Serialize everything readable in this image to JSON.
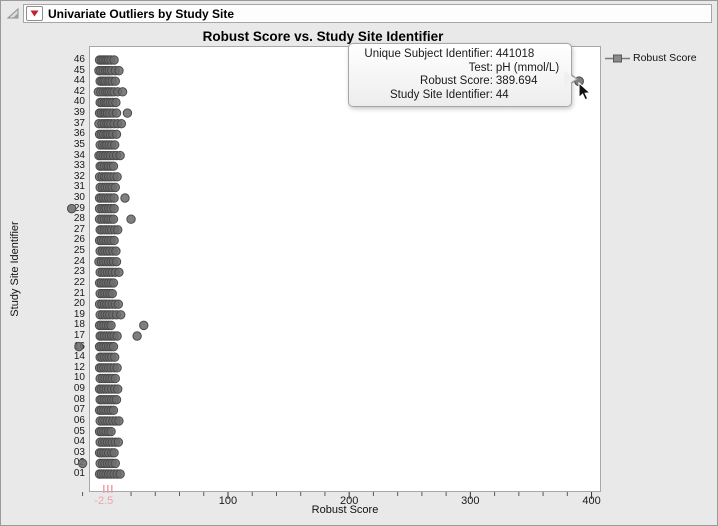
{
  "header": {
    "title": "Univariate Outliers by Study Site"
  },
  "legend": {
    "label": "Robust Score"
  },
  "tooltip": {
    "rows": [
      {
        "label": "Unique Subject Identifier:",
        "value": "441018"
      },
      {
        "label": "Test:",
        "value": "pH (mmol/L)"
      },
      {
        "label": "Robust Score:",
        "value": "389.694"
      },
      {
        "label": "Study Site Identifier:",
        "value": "44"
      }
    ]
  },
  "colors": {
    "window_bg": "#e9e9e9",
    "panel_border": "#9a9a9a",
    "header_bg": "#fdfdfd",
    "header_border": "#a6a6a6",
    "plot_bg": "#ffffff",
    "plot_border": "#a8a8a8",
    "marker_fill": "#6d6d6d",
    "marker_edge": "#4c4c4c",
    "tick": "#5a5a5a",
    "tick_label": "#1a1a1a",
    "axis_highlight_pink": "#f0a2ab",
    "red_triangle": "#c2202c",
    "legend_line": "#7a7a7a",
    "legend_marker_fill": "#8a8a8a",
    "legend_marker_edge": "#585858"
  },
  "chart_data": {
    "type": "scatter",
    "title": "Robust Score vs. Study Site Identifier",
    "xlabel": "Robust Score",
    "ylabel": "Study Site Identifier",
    "xlim": [
      -14.7,
      407.8
    ],
    "x_major_ticks": [
      100,
      200,
      300,
      400
    ],
    "x_major_tick_labels": [
      "100",
      "200",
      "300",
      "400"
    ],
    "x_minor_tick_step": 20,
    "special_x_tick": {
      "label": "-2.5",
      "value": -2.5,
      "extra_tick_values": [
        -2.5,
        0.8,
        4.1
      ]
    },
    "grid": false,
    "legend_position": "top-right",
    "categories_top_to_bottom": [
      "46",
      "45",
      "44",
      "42",
      "40",
      "39",
      "37",
      "36",
      "35",
      "34",
      "33",
      "32",
      "31",
      "30",
      "29",
      "28",
      "27",
      "26",
      "25",
      "24",
      "23",
      "22",
      "21",
      "20",
      "19",
      "18",
      "17",
      "16",
      "14",
      "12",
      "10",
      "09",
      "08",
      "07",
      "06",
      "05",
      "04",
      "03",
      "02",
      "01"
    ],
    "series": [
      {
        "name": "Robust Score",
        "points": [
          {
            "site": "46",
            "scores": [
              -6,
              -4.5,
              -3,
              -1.5,
              0,
              1.5,
              3.5,
              6
            ]
          },
          {
            "site": "45",
            "scores": [
              -6.5,
              -5,
              -3,
              -1,
              0.5,
              2,
              4,
              7,
              10
            ]
          },
          {
            "site": "44",
            "scores": [
              -5.5,
              -4,
              -2.5,
              -1,
              1,
              2.5,
              4.5,
              7
            ]
          },
          {
            "site": "42",
            "scores": [
              -7,
              -5,
              -3,
              -1,
              0.5,
              2,
              4,
              6,
              9,
              13
            ]
          },
          {
            "site": "40",
            "scores": [
              -5.5,
              -4,
              -2,
              -0.5,
              1,
              3,
              5,
              7.5
            ]
          },
          {
            "site": "39",
            "scores": [
              -6,
              -4.5,
              -2.5,
              -1,
              0.5,
              2.5,
              5,
              8,
              17
            ]
          },
          {
            "site": "37",
            "scores": [
              -6.5,
              -4,
              -2,
              0,
              1.5,
              3.5,
              6,
              9,
              12
            ]
          },
          {
            "site": "36",
            "scores": [
              -6,
              -4.5,
              -2.5,
              -0.5,
              1,
              3,
              5,
              8
            ]
          },
          {
            "site": "35",
            "scores": [
              -5.5,
              -3.5,
              -1.5,
              0,
              2,
              4,
              6.5
            ]
          },
          {
            "site": "34",
            "scores": [
              -6.5,
              -5,
              -3,
              -1,
              1,
              3,
              5.5,
              8,
              11
            ]
          },
          {
            "site": "33",
            "scores": [
              -5.5,
              -4,
              -2,
              0,
              1.5,
              3.5,
              5.5
            ]
          },
          {
            "site": "32",
            "scores": [
              -6,
              -4,
              -2,
              -0.5,
              1.5,
              3.5,
              6,
              8.5
            ]
          },
          {
            "site": "31",
            "scores": [
              -5.5,
              -3.5,
              -1.5,
              0.5,
              2.5,
              4.5,
              7
            ]
          },
          {
            "site": "30",
            "scores": [
              -6,
              -4.5,
              -2.5,
              -0.5,
              1.5,
              3.5,
              6,
              15
            ]
          },
          {
            "site": "29",
            "scores": [
              -29,
              -6,
              -4,
              -2,
              -0.5,
              1.5,
              3.5,
              6
            ]
          },
          {
            "site": "28",
            "scores": [
              -6,
              -4,
              -2,
              0,
              1.5,
              3.5,
              5.5,
              20
            ]
          },
          {
            "site": "27",
            "scores": [
              -5.5,
              -4,
              -2,
              0,
              2,
              4,
              6.5,
              9
            ]
          },
          {
            "site": "26",
            "scores": [
              -6,
              -4.5,
              -2.5,
              -0.5,
              1.5,
              3.5,
              6
            ]
          },
          {
            "site": "25",
            "scores": [
              -5.5,
              -3.5,
              -1.5,
              0.5,
              2.5,
              5,
              7.5
            ]
          },
          {
            "site": "24",
            "scores": [
              -6.5,
              -4.5,
              -2.5,
              -0.5,
              1.5,
              3.5,
              5.5,
              8
            ]
          },
          {
            "site": "23",
            "scores": [
              -5.5,
              -3.5,
              -1.5,
              0.5,
              2.5,
              4.5,
              7,
              10
            ]
          },
          {
            "site": "22",
            "scores": [
              -6,
              -4.5,
              -2.5,
              -0.5,
              1.5,
              3.5,
              5.5
            ]
          },
          {
            "site": "21",
            "scores": [
              -5.5,
              -3.5,
              -1.5,
              0.5,
              2.5,
              4.5
            ]
          },
          {
            "site": "20",
            "scores": [
              -6,
              -4,
              -2,
              0,
              2,
              4.5,
              7,
              9.5
            ]
          },
          {
            "site": "19",
            "scores": [
              -5.5,
              -3.5,
              -1.5,
              0.5,
              2.5,
              5,
              8,
              11.5
            ]
          },
          {
            "site": "18",
            "scores": [
              -6,
              -4.5,
              -2.5,
              -0.5,
              1.5,
              3.5,
              30.5
            ]
          },
          {
            "site": "17",
            "scores": [
              -5.5,
              -4,
              -2,
              0,
              2,
              4,
              6,
              8.5,
              25
            ]
          },
          {
            "site": "16",
            "scores": [
              -23,
              -6,
              -4.5,
              -2.5,
              -0.5,
              1.5,
              3.5,
              5.5
            ]
          },
          {
            "site": "14",
            "scores": [
              -5.5,
              -4,
              -2,
              0,
              2,
              4,
              6.5
            ]
          },
          {
            "site": "12",
            "scores": [
              -6,
              -4.5,
              -2.5,
              -0.5,
              1.5,
              3.5,
              6,
              8.5
            ]
          },
          {
            "site": "10",
            "scores": [
              -5.5,
              -3.5,
              -1.5,
              0.5,
              2.5,
              4.5,
              7
            ]
          },
          {
            "site": "09",
            "scores": [
              -6,
              -4.5,
              -2.5,
              -0.5,
              1.5,
              4,
              6.5,
              9
            ]
          },
          {
            "site": "08",
            "scores": [
              -5.5,
              -4,
              -2,
              0,
              2,
              4,
              6,
              8
            ]
          },
          {
            "site": "07",
            "scores": [
              -6,
              -4.5,
              -2.5,
              -0.5,
              1.5,
              3.5,
              5.5
            ]
          },
          {
            "site": "06",
            "scores": [
              -5.5,
              -3.5,
              -1.5,
              0.5,
              2.5,
              5,
              7.5,
              10
            ]
          },
          {
            "site": "05",
            "scores": [
              -6,
              -4.5,
              -2.5,
              -0.5,
              1.5,
              3.5
            ]
          },
          {
            "site": "04",
            "scores": [
              -5.5,
              -3.5,
              -1.5,
              0.5,
              2.5,
              4.5,
              7,
              9.5
            ]
          },
          {
            "site": "03",
            "scores": [
              -6,
              -4.5,
              -2.5,
              -0.5,
              1.5,
              4,
              6
            ]
          },
          {
            "site": "02",
            "scores": [
              -20,
              -5.5,
              -3.5,
              -1.5,
              0.5,
              2.5,
              4.5,
              7
            ]
          },
          {
            "site": "01",
            "scores": [
              -6,
              -4.5,
              -2.5,
              -0.5,
              1.5,
              3.5,
              6,
              8.5,
              11
            ]
          }
        ]
      }
    ],
    "highlight": {
      "site": "44",
      "value": 389.694
    }
  }
}
